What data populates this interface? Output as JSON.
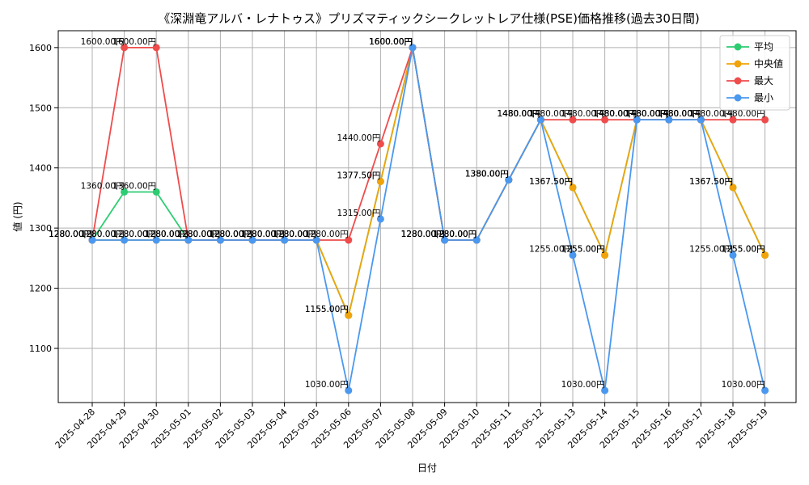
{
  "chart_data": {
    "type": "line",
    "title": "《深淵竜アルバ・レナトゥス》プリズマティックシークレットレア仕様(PSE)価格推移(過去30日間)",
    "xlabel": "日付",
    "ylabel": "値 (円)",
    "ylim": [
      1010,
      1628
    ],
    "yticks": [
      1100,
      1200,
      1300,
      1400,
      1500,
      1600
    ],
    "grid": true,
    "legend_position": "top-right",
    "value_suffix": "円",
    "categories": [
      "2025-04-28",
      "2025-04-29",
      "2025-04-30",
      "2025-05-01",
      "2025-05-02",
      "2025-05-03",
      "2025-05-04",
      "2025-05-05",
      "2025-05-06",
      "2025-05-07",
      "2025-05-08",
      "2025-05-09",
      "2025-05-10",
      "2025-05-11",
      "2025-05-12",
      "2025-05-13",
      "2025-05-14",
      "2025-05-15",
      "2025-05-16",
      "2025-05-17",
      "2025-05-18",
      "2025-05-19"
    ],
    "series": [
      {
        "name": "平均",
        "color": "#2ecc71",
        "values": [
          1280,
          1360,
          1360,
          1280,
          1280,
          1280,
          1280,
          1280,
          1155,
          1377.5,
          1600,
          1280,
          1280,
          1380,
          1480,
          1367.5,
          1255,
          1480,
          1480,
          1480,
          1367.5,
          1255
        ]
      },
      {
        "name": "中央値",
        "color": "#f0a30a",
        "values": [
          1280,
          1280,
          1280,
          1280,
          1280,
          1280,
          1280,
          1280,
          1155,
          1377.5,
          1600,
          1280,
          1280,
          1380,
          1480,
          1367.5,
          1255,
          1480,
          1480,
          1480,
          1367.5,
          1255
        ]
      },
      {
        "name": "最大",
        "color": "#ef4c4c",
        "values": [
          1280,
          1600,
          1600,
          1280,
          1280,
          1280,
          1280,
          1280,
          1280,
          1440,
          1600,
          1280,
          1280,
          1380,
          1480,
          1480,
          1480,
          1480,
          1480,
          1480,
          1480,
          1480
        ]
      },
      {
        "name": "最小",
        "color": "#4a98ef",
        "values": [
          1280,
          1280,
          1280,
          1280,
          1280,
          1280,
          1280,
          1280,
          1030,
          1315,
          1600,
          1280,
          1280,
          1380,
          1480,
          1255,
          1030,
          1480,
          1480,
          1480,
          1255,
          1030
        ]
      }
    ]
  }
}
